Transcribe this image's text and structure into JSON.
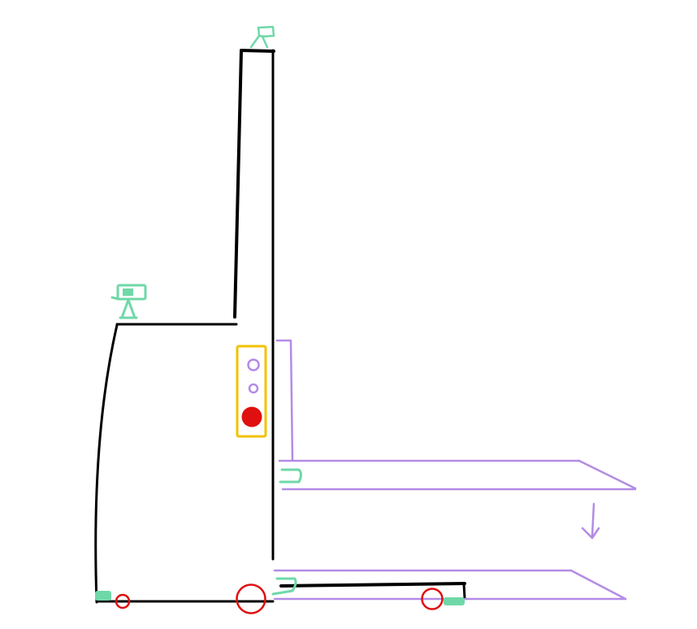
{
  "colors": {
    "frame": "#000000",
    "fork": "#b48be6",
    "sensor": "#6fd8a8",
    "wheel": "#e01010",
    "panel": "#f2c200",
    "button_red": "#e01010",
    "button_outline": "#b48be6",
    "arrow": "#b48be6",
    "background": "#ffffff"
  },
  "icons": {
    "mast_top_sensor": "camera-tripod-icon",
    "body_top_sensor": "camera-tripod-icon",
    "upper_fork_sensor": "bracket-sensor-icon",
    "lower_fork_sensor": "bracket-sensor-icon",
    "down_arrow": "down-arrow-icon"
  }
}
